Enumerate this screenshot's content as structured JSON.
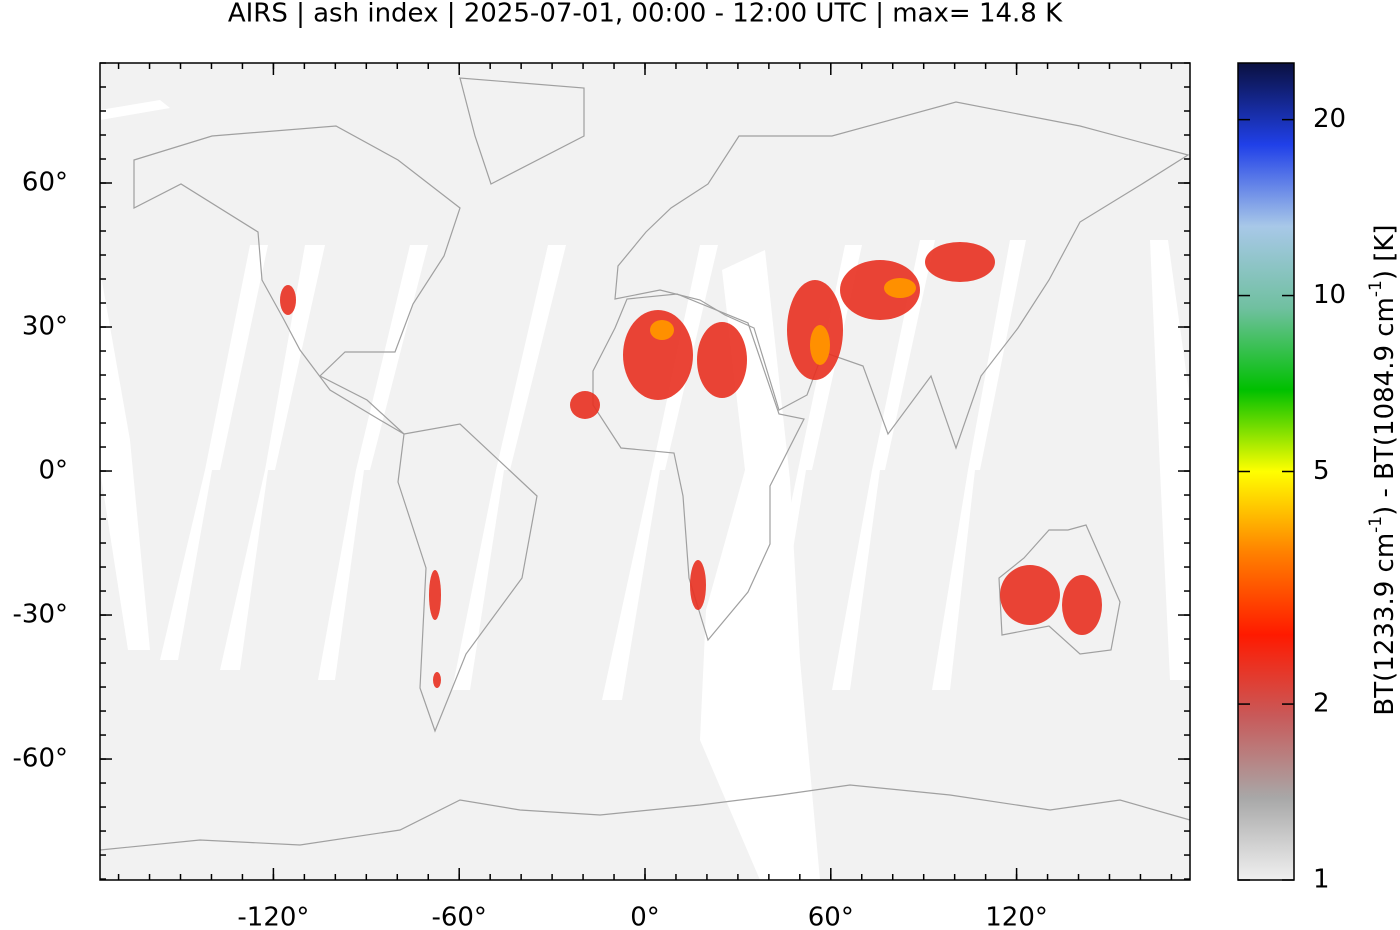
{
  "chart_data": {
    "type": "map",
    "title": "AIRS | ash index | 2025-07-01, 00:00 - 12:00 UTC | max= 14.8 K",
    "xlim": [
      -176,
      176
    ],
    "ylim": [
      -85.2,
      85
    ],
    "xticks": [
      {
        "value": -120,
        "label": "-120°"
      },
      {
        "value": -60,
        "label": "-60°"
      },
      {
        "value": 0,
        "label": "0°"
      },
      {
        "value": 60,
        "label": "60°"
      },
      {
        "value": 120,
        "label": "120°"
      }
    ],
    "yticks": [
      {
        "value": -60,
        "label": "-60°"
      },
      {
        "value": -30,
        "label": "-30°"
      },
      {
        "value": 0,
        "label": "0°"
      },
      {
        "value": 30,
        "label": "30°"
      },
      {
        "value": 60,
        "label": "60°"
      }
    ],
    "colorbar": {
      "clim": [
        1,
        25
      ],
      "log_scale": true,
      "ticks": [
        1,
        2,
        5,
        10,
        20
      ],
      "label_parts": [
        "BT(1233.9 cm",
        "-1",
        ") - BT(1084.9 cm",
        "-1",
        ") [K]"
      ],
      "colormap": [
        "#f0f0f0",
        "#a8a8a8",
        "#c85a5a",
        "#ff1a00",
        "#ff8000",
        "#ffff00",
        "#00c000",
        "#70c0a0",
        "#a8c8e8",
        "#2040e8",
        "#0a1040"
      ]
    }
  }
}
